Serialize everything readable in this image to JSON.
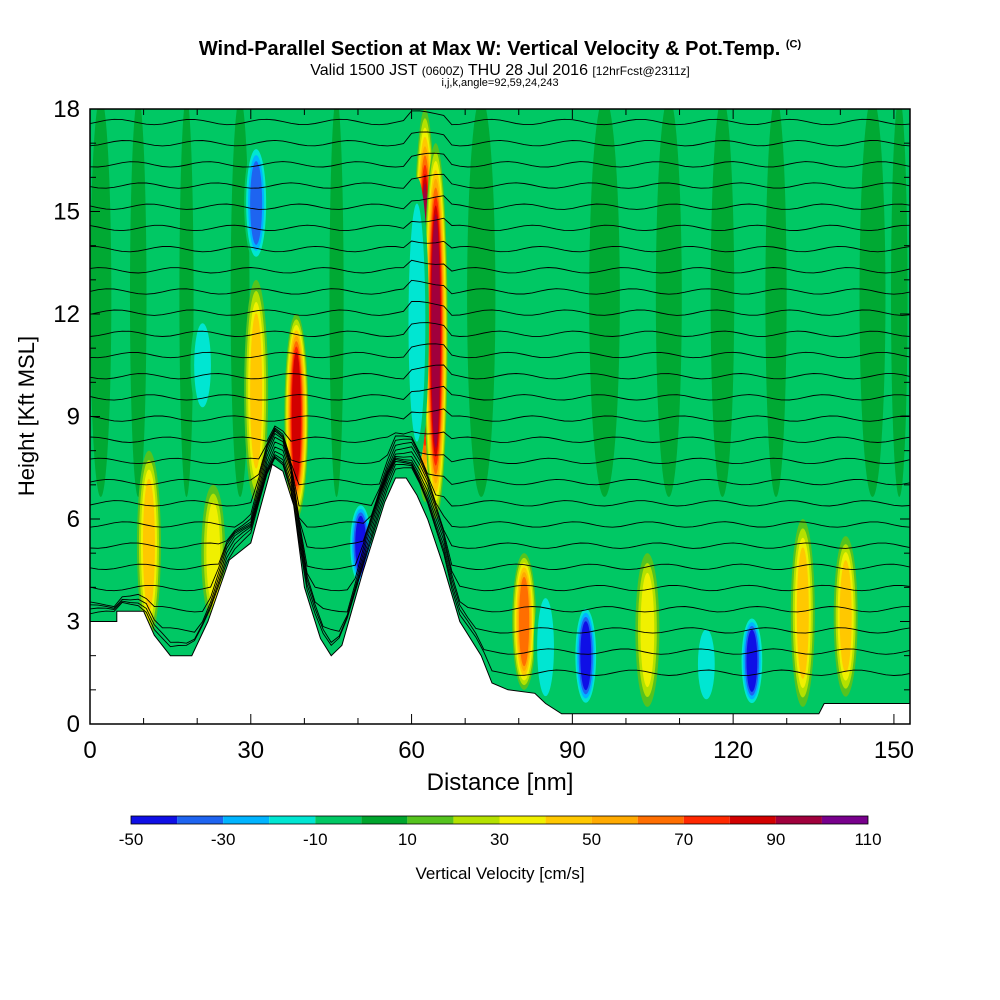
{
  "header": {
    "title_main": "Wind-Parallel Section at Max W: Vertical Velocity & Pot.Temp.",
    "title_tag": "(C)",
    "valid_a": "Valid 1500 JST",
    "valid_b": "(0600Z)",
    "valid_c": "THU 28 Jul 2016",
    "valid_d": "[12hrFcst@2311z]",
    "indices": "i,j,k,angle=92,59,24,243"
  },
  "chart_data": {
    "type": "heatmap",
    "xlabel": "Distance [nm]",
    "ylabel": "Height [Kft MSL]",
    "xlim": [
      0,
      153
    ],
    "ylim": [
      0,
      18
    ],
    "xticks": [
      "0",
      "30",
      "60",
      "90",
      "120",
      "150"
    ],
    "xtick_values": [
      0,
      30,
      60,
      90,
      120,
      150
    ],
    "yticks": [
      "0",
      "3",
      "6",
      "9",
      "12",
      "15",
      "18"
    ],
    "ytick_values": [
      0,
      3,
      6,
      9,
      12,
      15,
      18
    ],
    "colorbar": {
      "label": "Vertical Velocity [cm/s]",
      "tick_labels": [
        "-50",
        "-30",
        "-10",
        "10",
        "30",
        "50",
        "70",
        "90",
        "110"
      ],
      "tick_values": [
        -50,
        -30,
        -10,
        10,
        30,
        50,
        70,
        90,
        110
      ],
      "colors": [
        "#0f0fe6",
        "#1e64f0",
        "#00b4ff",
        "#00e6d2",
        "#00c864",
        "#00a52d",
        "#55c31e",
        "#b4e100",
        "#f0f000",
        "#ffc800",
        "#ffaa00",
        "#ff6e00",
        "#ff2800",
        "#d20000",
        "#a0003c",
        "#78008c"
      ]
    },
    "terrain": [
      [
        0,
        3
      ],
      [
        5,
        3
      ],
      [
        5,
        3.3
      ],
      [
        10,
        3.3
      ],
      [
        12,
        2.6
      ],
      [
        15,
        2.0
      ],
      [
        19,
        2.0
      ],
      [
        22,
        3
      ],
      [
        26,
        4.8
      ],
      [
        30,
        5.3
      ],
      [
        34,
        7.6
      ],
      [
        36,
        7.4
      ],
      [
        38,
        6.4
      ],
      [
        40,
        4.0
      ],
      [
        41,
        3.5
      ],
      [
        43,
        2.5
      ],
      [
        45,
        2.0
      ],
      [
        47,
        2.3
      ],
      [
        51,
        4.5
      ],
      [
        55,
        6.5
      ],
      [
        57,
        7.2
      ],
      [
        59,
        7.2
      ],
      [
        61,
        6.7
      ],
      [
        63,
        6.0
      ],
      [
        66,
        4.6
      ],
      [
        69,
        3.0
      ],
      [
        73,
        2.0
      ],
      [
        75,
        1.2
      ],
      [
        78,
        1.0
      ],
      [
        83,
        0.9
      ],
      [
        85,
        0.6
      ],
      [
        88,
        0.3
      ],
      [
        92,
        0.3
      ],
      [
        136,
        0.3
      ],
      [
        137,
        0.6
      ],
      [
        153,
        0.6
      ]
    ],
    "updraft_cores": [
      {
        "x": 62.5,
        "z_bottom": 6.5,
        "z_top": 18,
        "peak": 90
      },
      {
        "x": 64.5,
        "z_bottom": 6.0,
        "z_top": 17,
        "peak": 90
      },
      {
        "x": 38.5,
        "z_bottom": 6.0,
        "z_top": 12,
        "peak": 80
      },
      {
        "x": 31,
        "z_bottom": 6.5,
        "z_top": 13,
        "peak": 35
      },
      {
        "x": 81,
        "z_bottom": 1.0,
        "z_top": 5,
        "peak": 55
      },
      {
        "x": 133,
        "z_bottom": 0.5,
        "z_top": 6,
        "peak": 40
      },
      {
        "x": 141,
        "z_bottom": 0.8,
        "z_top": 5.5,
        "peak": 35
      },
      {
        "x": 11,
        "z_bottom": 2.5,
        "z_top": 8,
        "peak": 35
      },
      {
        "x": 23,
        "z_bottom": 3.0,
        "z_top": 7,
        "peak": 30
      },
      {
        "x": 104,
        "z_bottom": 0.5,
        "z_top": 5,
        "peak": 30
      }
    ],
    "downdraft_cores": [
      {
        "x": 31,
        "z_bottom": 13.5,
        "z_top": 17,
        "peak": -40
      },
      {
        "x": 50.5,
        "z_bottom": 4.0,
        "z_top": 6.5,
        "peak": -50
      },
      {
        "x": 92.5,
        "z_bottom": 0.5,
        "z_top": 3.5,
        "peak": -50
      },
      {
        "x": 123.5,
        "z_bottom": 0.5,
        "z_top": 3.2,
        "peak": -50
      },
      {
        "x": 61,
        "z_bottom": 7.5,
        "z_top": 16,
        "peak": -20
      },
      {
        "x": 85,
        "z_bottom": 0.5,
        "z_top": 4,
        "peak": -20
      },
      {
        "x": 115,
        "z_bottom": 0.5,
        "z_top": 3,
        "peak": -15
      },
      {
        "x": 21,
        "z_bottom": 9,
        "z_top": 12,
        "peak": -15
      }
    ]
  }
}
